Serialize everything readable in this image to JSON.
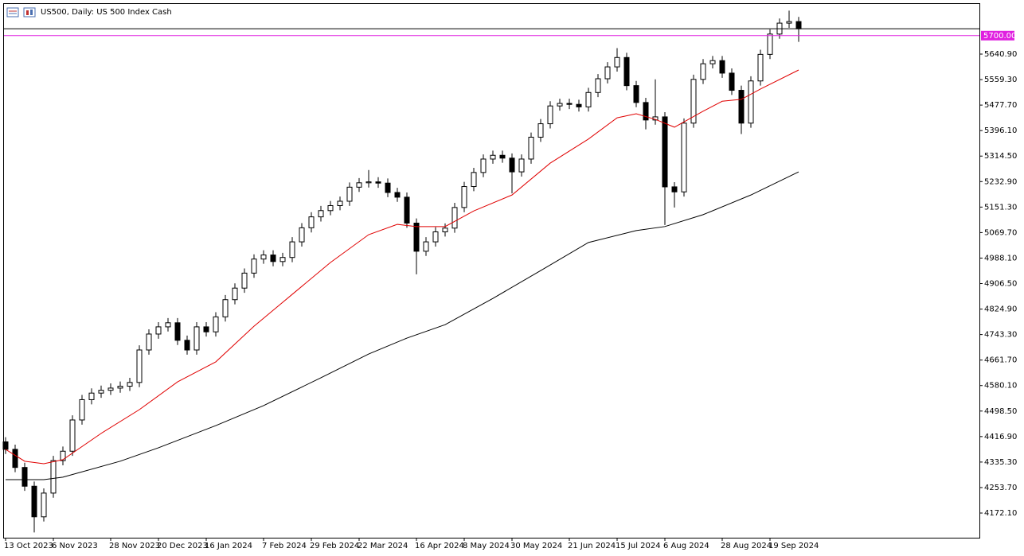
{
  "chart_data": {
    "type": "candlestick",
    "title": "US500, Daily:  US 500 Index Cash",
    "categories": [
      "13 Oct 2023",
      null,
      null,
      null,
      null,
      "6 Nov 2023",
      null,
      null,
      null,
      null,
      null,
      "28 Nov 2023",
      null,
      null,
      null,
      null,
      "20 Dec 2023",
      null,
      null,
      null,
      null,
      "16 Jan 2024",
      null,
      null,
      null,
      null,
      null,
      "7 Feb 2024",
      null,
      null,
      null,
      null,
      "29 Feb 2024",
      null,
      null,
      null,
      null,
      "22 Mar 2024",
      null,
      null,
      null,
      null,
      null,
      "16 Apr 2024",
      null,
      null,
      null,
      null,
      "8 May 2024",
      null,
      null,
      null,
      null,
      "30 May 2024",
      null,
      null,
      null,
      null,
      null,
      "21 Jun 2024",
      null,
      null,
      null,
      null,
      "15 Jul 2024",
      null,
      null,
      null,
      null,
      "6 Aug 2024",
      null,
      null,
      null,
      null,
      null,
      "28 Aug 2024",
      null,
      null,
      null,
      null,
      "19 Sep 2024",
      null,
      null,
      null
    ],
    "open": [
      4400,
      4376,
      4318,
      4258,
      4160,
      4236,
      4340,
      4370,
      4470,
      4535,
      4556,
      4565,
      4572,
      4578,
      4590,
      4694,
      4745,
      4768,
      4781,
      4725,
      4694,
      4768,
      4752,
      4800,
      4855,
      4892,
      4940,
      4985,
      4998,
      4977,
      4990,
      5040,
      5085,
      5120,
      5140,
      5156,
      5170,
      5215,
      5229,
      5232,
      5228,
      5198,
      5183,
      5100,
      5010,
      5040,
      5072,
      5084,
      5150,
      5217,
      5262,
      5305,
      5317,
      5308,
      5264,
      5305,
      5375,
      5418,
      5475,
      5483,
      5480,
      5472,
      5518,
      5562,
      5600,
      5630,
      5540,
      5486,
      5430,
      5440,
      5216,
      5200,
      5420,
      5560,
      5610,
      5620,
      5580,
      5525,
      5420,
      5555,
      5640,
      5705,
      5740,
      5745
    ],
    "high": [
      4415,
      4391,
      4333,
      4273,
      4251,
      4355,
      4385,
      4485,
      4550,
      4571,
      4580,
      4587,
      4593,
      4605,
      4709,
      4760,
      4783,
      4796,
      4796,
      4740,
      4783,
      4783,
      4815,
      4870,
      4907,
      4955,
      5000,
      5013,
      5013,
      5005,
      5055,
      5100,
      5135,
      5155,
      5171,
      5185,
      5230,
      5244,
      5270,
      5247,
      5243,
      5213,
      5198,
      5115,
      5055,
      5087,
      5099,
      5165,
      5232,
      5277,
      5320,
      5332,
      5332,
      5323,
      5320,
      5390,
      5433,
      5490,
      5498,
      5498,
      5495,
      5533,
      5577,
      5615,
      5660,
      5645,
      5555,
      5501,
      5560,
      5455,
      5231,
      5435,
      5575,
      5625,
      5635,
      5635,
      5595,
      5540,
      5570,
      5655,
      5720,
      5755,
      5780,
      5760
    ],
    "low": [
      4361,
      4303,
      4243,
      4110,
      4145,
      4221,
      4325,
      4355,
      4455,
      4520,
      4541,
      4550,
      4557,
      4563,
      4575,
      4679,
      4730,
      4753,
      4710,
      4679,
      4679,
      4737,
      4737,
      4785,
      4840,
      4877,
      4925,
      4970,
      4962,
      4962,
      4975,
      5025,
      5070,
      5105,
      5125,
      5141,
      5155,
      5200,
      5214,
      5213,
      5183,
      5168,
      5085,
      4936,
      4995,
      5025,
      5057,
      5069,
      5135,
      5202,
      5247,
      5290,
      5293,
      5195,
      5249,
      5290,
      5360,
      5403,
      5460,
      5465,
      5457,
      5457,
      5503,
      5547,
      5585,
      5525,
      5471,
      5400,
      5415,
      5094,
      5150,
      5185,
      5405,
      5545,
      5595,
      5565,
      5510,
      5385,
      5405,
      5540,
      5625,
      5690,
      5725,
      5680
    ],
    "close": [
      4376,
      4318,
      4258,
      4160,
      4236,
      4340,
      4370,
      4470,
      4535,
      4556,
      4565,
      4572,
      4578,
      4590,
      4694,
      4745,
      4768,
      4781,
      4725,
      4694,
      4768,
      4752,
      4800,
      4855,
      4892,
      4940,
      4985,
      4998,
      4977,
      4990,
      5040,
      5085,
      5120,
      5140,
      5156,
      5170,
      5215,
      5229,
      5232,
      5228,
      5198,
      5183,
      5100,
      5010,
      5040,
      5072,
      5084,
      5150,
      5217,
      5262,
      5305,
      5317,
      5308,
      5264,
      5305,
      5375,
      5418,
      5475,
      5483,
      5480,
      5472,
      5518,
      5562,
      5600,
      5630,
      5540,
      5486,
      5430,
      5440,
      5216,
      5200,
      5420,
      5560,
      5610,
      5620,
      5580,
      5525,
      5420,
      5555,
      5640,
      5705,
      5740,
      5745,
      5722
    ],
    "series": [
      {
        "color": "#e00000",
        "x": [
          0,
          2,
          4,
          6,
          10,
          14,
          18,
          22,
          26,
          30,
          34,
          38,
          41,
          43,
          46,
          49,
          53,
          57,
          61,
          64,
          66,
          68,
          70,
          73,
          75,
          77,
          79,
          83
        ],
        "values": [
          4376,
          4338,
          4330,
          4343,
          4427,
          4503,
          4592,
          4656,
          4770,
          4872,
          4974,
          5063,
          5096,
          5089,
          5089,
          5139,
          5190,
          5292,
          5369,
          5437,
          5450,
          5432,
          5407,
          5458,
          5490,
          5496,
          5529,
          5590
        ]
      },
      {
        "color": "#000000",
        "x": [
          0,
          4,
          6,
          12,
          16,
          22,
          27,
          33,
          38,
          42,
          46,
          51,
          56,
          61,
          66,
          69,
          73,
          78,
          83
        ],
        "values": [
          4279,
          4279,
          4287,
          4338,
          4381,
          4452,
          4516,
          4605,
          4681,
          4732,
          4775,
          4859,
          4948,
          5038,
          5076,
          5089,
          5127,
          5190,
          5264
        ]
      }
    ],
    "hlines": [
      {
        "value": 5700,
        "label": "5700.00",
        "color": "#e020e0"
      }
    ],
    "price_line": 5722,
    "ylim": [
      4093.2,
      5801.3
    ],
    "yticks": [
      {
        "value": 4172.1,
        "label": "4172.10"
      },
      {
        "value": 4253.7,
        "label": "4253.70"
      },
      {
        "value": 4335.3,
        "label": "4335.30"
      },
      {
        "value": 4416.9,
        "label": "4416.90"
      },
      {
        "value": 4498.5,
        "label": "4498.50"
      },
      {
        "value": 4580.1,
        "label": "4580.10"
      },
      {
        "value": 4661.7,
        "label": "4661.70"
      },
      {
        "value": 4743.3,
        "label": "4743.30"
      },
      {
        "value": 4824.9,
        "label": "4824.90"
      },
      {
        "value": 4906.5,
        "label": "4906.50"
      },
      {
        "value": 4988.1,
        "label": "4988.10"
      },
      {
        "value": 5069.7,
        "label": "5069.70"
      },
      {
        "value": 5151.3,
        "label": "5151.30"
      },
      {
        "value": 5232.9,
        "label": "5232.90"
      },
      {
        "value": 5314.5,
        "label": "5314.50"
      },
      {
        "value": 5396.1,
        "label": "5396.10"
      },
      {
        "value": 5477.7,
        "label": "5477.70"
      },
      {
        "value": 5559.3,
        "label": "5559.30"
      },
      {
        "value": 5640.9,
        "label": "5640.90"
      }
    ],
    "grid": false
  }
}
